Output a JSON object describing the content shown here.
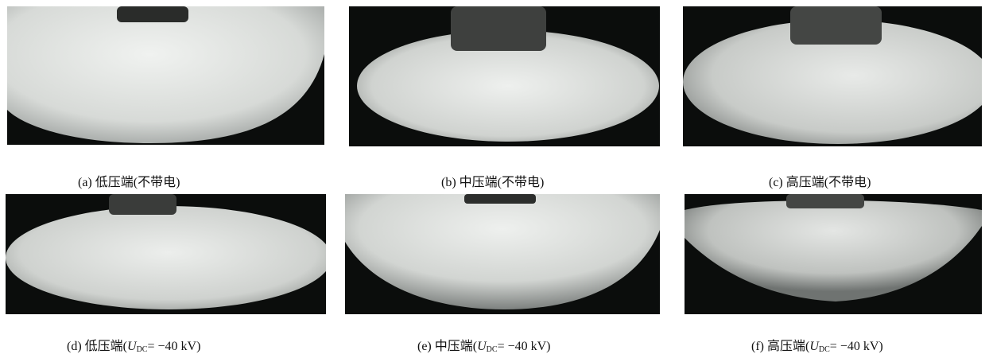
{
  "panels": [
    {
      "id": "a",
      "caption": "(a)  低压端(不带电)"
    },
    {
      "id": "b",
      "caption": "(b)  中压端(不带电)"
    },
    {
      "id": "c",
      "caption": "(c)  高压端(不带电)"
    },
    {
      "id": "d",
      "caption_prefix": "(d)  低压端(",
      "var": "U",
      "sub": "DC",
      "value": "= −40 kV)"
    },
    {
      "id": "e",
      "caption_prefix": "(e)  中压端(",
      "var": "U",
      "sub": "DC",
      "value": "= −40 kV)"
    },
    {
      "id": "f",
      "caption_prefix": "(f)  高压端(",
      "var": "U",
      "sub": "DC",
      "value": "= −40 kV)"
    }
  ],
  "colors": {
    "ice": "#e6e8e6",
    "background": "#0b0d0c",
    "post": "#4a4c4a"
  }
}
